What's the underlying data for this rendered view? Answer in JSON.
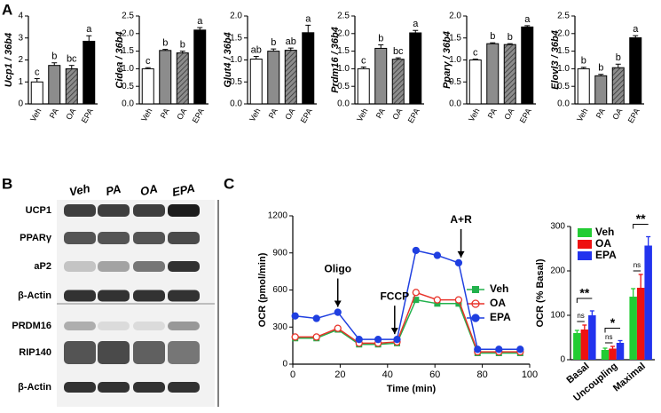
{
  "panel_labels": [
    "A",
    "B",
    "C"
  ],
  "chart_data": [
    {
      "type": "bar",
      "ylabel": "Ucp1 / 36b4",
      "categories": [
        "Veh",
        "PA",
        "OA",
        "EPA"
      ],
      "values": [
        1.0,
        1.75,
        1.6,
        2.85
      ],
      "errors": [
        0.15,
        0.12,
        0.15,
        0.25
      ],
      "letters": [
        "c",
        "b",
        "bc",
        "a"
      ],
      "colors": [
        "#ffffff",
        "#8c8c8c",
        "#8c8c8c",
        "#000000"
      ],
      "hatch": [
        false,
        false,
        true,
        false
      ],
      "ylim": [
        0,
        4
      ],
      "yticks": [
        0,
        1,
        2,
        3,
        4
      ]
    },
    {
      "type": "bar",
      "ylabel": "Cidea / 36b4",
      "categories": [
        "Veh",
        "PA",
        "OA",
        "EPA"
      ],
      "values": [
        1.0,
        1.52,
        1.45,
        2.1
      ],
      "errors": [
        0.03,
        0.03,
        0.05,
        0.07
      ],
      "letters": [
        "c",
        "b",
        "b",
        "a"
      ],
      "colors": [
        "#ffffff",
        "#8c8c8c",
        "#8c8c8c",
        "#000000"
      ],
      "hatch": [
        false,
        false,
        true,
        false
      ],
      "ylim": [
        0,
        2.5
      ],
      "yticks": [
        {
          "value": 0,
          "label": "0.0"
        },
        {
          "value": 0.5,
          "label": "0.5"
        },
        {
          "value": 1,
          "label": "1.0"
        },
        {
          "value": 1.5,
          "label": "1.5"
        },
        {
          "value": 2,
          "label": "2.0"
        },
        {
          "value": 2.5,
          "label": "2.5"
        }
      ]
    },
    {
      "type": "bar",
      "ylabel": "Glut4 / 36b4",
      "categories": [
        "Veh",
        "PA",
        "OA",
        "EPA"
      ],
      "values": [
        1.02,
        1.2,
        1.22,
        1.62
      ],
      "errors": [
        0.06,
        0.05,
        0.05,
        0.17
      ],
      "letters": [
        "ab",
        "b",
        "ab",
        "a"
      ],
      "colors": [
        "#ffffff",
        "#8c8c8c",
        "#8c8c8c",
        "#000000"
      ],
      "hatch": [
        false,
        false,
        true,
        false
      ],
      "ylim": [
        0,
        2
      ],
      "yticks": [
        {
          "value": 0,
          "label": "0.0"
        },
        {
          "value": 0.5,
          "label": "0.5"
        },
        {
          "value": 1,
          "label": "1.0"
        },
        {
          "value": 1.5,
          "label": "1.5"
        },
        {
          "value": 2,
          "label": "2.0"
        }
      ]
    },
    {
      "type": "bar",
      "ylabel": "Prdm16 / 36b4",
      "categories": [
        "Veh",
        "PA",
        "OA",
        "EPA"
      ],
      "values": [
        1.0,
        1.58,
        1.27,
        2.02
      ],
      "errors": [
        0.05,
        0.1,
        0.04,
        0.07
      ],
      "letters": [
        "c",
        "b",
        "bc",
        "a"
      ],
      "colors": [
        "#ffffff",
        "#8c8c8c",
        "#8c8c8c",
        "#000000"
      ],
      "hatch": [
        false,
        false,
        true,
        false
      ],
      "ylim": [
        0,
        2.5
      ],
      "yticks": [
        {
          "value": 0,
          "label": "0.0"
        },
        {
          "value": 0.5,
          "label": "0.5"
        },
        {
          "value": 1,
          "label": "1.0"
        },
        {
          "value": 1.5,
          "label": "1.5"
        },
        {
          "value": 2,
          "label": "2.0"
        },
        {
          "value": 2.5,
          "label": "2.5"
        }
      ]
    },
    {
      "type": "bar",
      "ylabel": "Pparγ / 36b4",
      "categories": [
        "Veh",
        "PA",
        "OA",
        "EPA"
      ],
      "values": [
        1.0,
        1.37,
        1.35,
        1.75
      ],
      "errors": [
        0.02,
        0.02,
        0.02,
        0.03
      ],
      "letters": [
        "c",
        "b",
        "b",
        "a"
      ],
      "colors": [
        "#ffffff",
        "#8c8c8c",
        "#8c8c8c",
        "#000000"
      ],
      "hatch": [
        false,
        false,
        true,
        false
      ],
      "ylim": [
        0,
        2
      ],
      "yticks": [
        {
          "value": 0,
          "label": "0.0"
        },
        {
          "value": 0.5,
          "label": "0.5"
        },
        {
          "value": 1,
          "label": "1.0"
        },
        {
          "value": 1.5,
          "label": "1.5"
        },
        {
          "value": 2,
          "label": "2.0"
        }
      ]
    },
    {
      "type": "bar",
      "ylabel": "Elovl3 / 36b4",
      "categories": [
        "Veh",
        "PA",
        "OA",
        "EPA"
      ],
      "values": [
        1.0,
        0.8,
        1.03,
        1.88
      ],
      "errors": [
        0.04,
        0.04,
        0.1,
        0.06
      ],
      "letters": [
        "b",
        "b",
        "b",
        "a"
      ],
      "colors": [
        "#ffffff",
        "#8c8c8c",
        "#8c8c8c",
        "#000000"
      ],
      "hatch": [
        false,
        false,
        true,
        false
      ],
      "ylim": [
        0,
        2.5
      ],
      "yticks": [
        {
          "value": 0,
          "label": "0.0"
        },
        {
          "value": 0.5,
          "label": "0.5"
        },
        {
          "value": 1,
          "label": "1.0"
        },
        {
          "value": 1.5,
          "label": "1.5"
        },
        {
          "value": 2,
          "label": "2.0"
        },
        {
          "value": 2.5,
          "label": "2.5"
        }
      ]
    },
    {
      "type": "line",
      "ylabel": "OCR (pmol/min)",
      "xlabel": "Time (min)",
      "x": [
        1,
        10,
        19,
        28,
        36,
        44,
        52,
        61,
        70,
        78,
        87,
        96
      ],
      "series": [
        {
          "name": "Veh",
          "color": "#22b14c",
          "marker": "square",
          "values": [
            210,
            210,
            280,
            160,
            160,
            170,
            520,
            490,
            490,
            90,
            90,
            90
          ]
        },
        {
          "name": "OA",
          "color": "#e8332a",
          "marker": "open-circle",
          "values": [
            220,
            220,
            290,
            170,
            170,
            180,
            580,
            520,
            520,
            100,
            100,
            100
          ]
        },
        {
          "name": "EPA",
          "color": "#1f3fe0",
          "marker": "circle",
          "values": [
            390,
            370,
            420,
            200,
            200,
            200,
            920,
            880,
            820,
            120,
            120,
            120
          ]
        }
      ],
      "annotations": [
        {
          "text": "Oligo",
          "x": 19
        },
        {
          "text": "FCCP",
          "x": 43
        },
        {
          "text": "A+R",
          "x": 71
        }
      ],
      "xlim": [
        0,
        100
      ],
      "xticks": [
        0,
        20,
        40,
        60,
        80,
        100
      ],
      "ylim": [
        0,
        1200
      ],
      "yticks": [
        0,
        300,
        600,
        900,
        1200
      ]
    },
    {
      "type": "grouped-bar",
      "ylabel": "OCR (% Basal)",
      "categories": [
        "Basal",
        "Uncoupling",
        "Maximal"
      ],
      "series": [
        {
          "name": "Veh",
          "color": "#22cc33",
          "values": [
            60,
            22,
            142
          ],
          "errors": [
            6,
            4,
            18
          ]
        },
        {
          "name": "OA",
          "color": "#ee1111",
          "values": [
            68,
            25,
            162
          ],
          "errors": [
            10,
            5,
            30
          ]
        },
        {
          "name": "EPA",
          "color": "#2233ee",
          "values": [
            100,
            38,
            257
          ],
          "errors": [
            10,
            5,
            20
          ]
        }
      ],
      "ns_labels": [
        "ns",
        "ns",
        "ns"
      ],
      "sig_labels": [
        "**",
        "*",
        "**"
      ],
      "ylim": [
        0,
        300
      ],
      "yticks": [
        0,
        100,
        200,
        300
      ]
    }
  ],
  "blot": {
    "columns": [
      "Veh",
      "PA",
      "OA",
      "EPA"
    ],
    "rows": [
      "UCP1",
      "PPARγ",
      "aP2",
      "β-Actin",
      "PRDM16",
      "RIP140",
      "β-Actin"
    ]
  }
}
